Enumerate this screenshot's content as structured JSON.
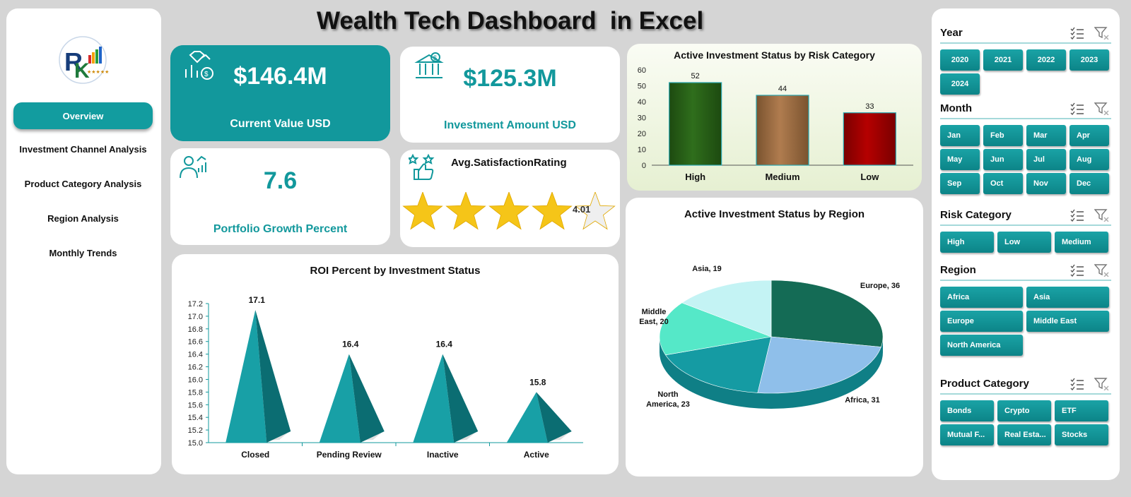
{
  "title": "Wealth Tech Dashboard  in Excel",
  "nav": {
    "items": [
      {
        "label": "Overview"
      },
      {
        "label": "Investment Channel Analysis"
      },
      {
        "label": "Product Category  Analysis"
      },
      {
        "label": "Region  Analysis"
      },
      {
        "label": "Monthly Trends"
      }
    ]
  },
  "kpis": {
    "current_value": {
      "value": "$146.4M",
      "label": "Current Value USD"
    },
    "investment_amount": {
      "value": "$125.3M",
      "label": "Investment Amount USD"
    },
    "portfolio_growth": {
      "value": "7.6",
      "label": "Portfolio Growth Percent"
    },
    "satisfaction": {
      "label": "Avg.SatisfactionRating",
      "value": "4.01",
      "rating": 4.01,
      "max": 5
    }
  },
  "colors": {
    "teal": "#12989c",
    "risk_high": "#2f6e1c",
    "risk_medium": "#b07c4f",
    "risk_low": "#b50000"
  },
  "chart_data": [
    {
      "type": "bar",
      "title": "Active Investment Status by Risk Category",
      "categories": [
        "High",
        "Medium",
        "Low"
      ],
      "values": [
        52,
        44,
        33
      ],
      "ylim": [
        0,
        60
      ],
      "yticks": [
        0,
        10,
        20,
        30,
        40,
        50,
        60
      ],
      "grid": false,
      "legend": "none"
    },
    {
      "type": "pie",
      "title": "Active Investment Status by Region",
      "labels": [
        "Europe",
        "Africa",
        "North America",
        "Middle East",
        "Asia"
      ],
      "values": [
        36,
        31,
        23,
        20,
        19
      ],
      "data_labels": [
        "Europe, 36",
        "Africa, 31",
        "North America, 23",
        "Middle East, 20",
        "Asia, 19"
      ],
      "colors": [
        "#146b55",
        "#8fbfea",
        "#159ba3",
        "#55e8c8",
        "#c4f3f4"
      ],
      "legend": "none"
    },
    {
      "type": "bar",
      "title": "ROI Percent by Investment Status",
      "categories": [
        "Closed",
        "Pending Review",
        "Inactive",
        "Active"
      ],
      "values": [
        17.1,
        16.4,
        16.4,
        15.8
      ],
      "ylim": [
        15.0,
        17.2
      ],
      "yticks": [
        "15.0",
        "15.2",
        "15.4",
        "15.6",
        "15.8",
        "16.0",
        "16.2",
        "16.4",
        "16.6",
        "16.8",
        "17.0",
        "17.2"
      ],
      "grid": false,
      "legend": "none"
    }
  ],
  "slicers": {
    "year": {
      "title": "Year",
      "options": [
        "2020",
        "2021",
        "2022",
        "2023",
        "2024"
      ]
    },
    "month": {
      "title": "Month",
      "options": [
        "Jan",
        "Feb",
        "Mar",
        "Apr",
        "May",
        "Jun",
        "Jul",
        "Aug",
        "Sep",
        "Oct",
        "Nov",
        "Dec"
      ]
    },
    "risk": {
      "title": "Risk Category",
      "options": [
        "High",
        "Low",
        "Medium"
      ]
    },
    "region": {
      "title": "Region",
      "options": [
        "Africa",
        "Asia",
        "Europe",
        "Middle East",
        "North America"
      ]
    },
    "product": {
      "title": "Product Category",
      "options": [
        "Bonds",
        "Crypto",
        "ETF",
        "Mutual F...",
        "Real Esta...",
        "Stocks"
      ]
    }
  }
}
